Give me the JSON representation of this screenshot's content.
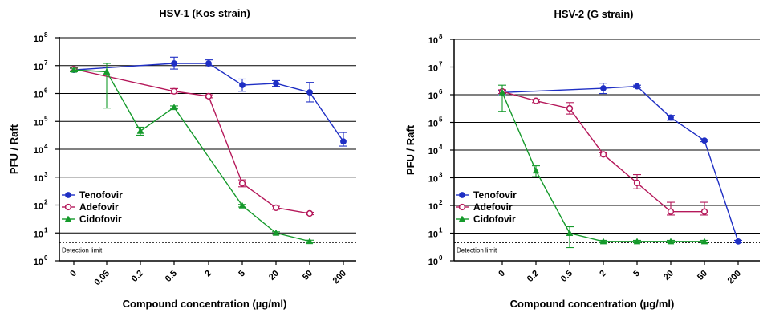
{
  "chart_data": [
    {
      "type": "line",
      "title": "HSV-1 (Kos strain)",
      "xlabel": "Compound concentration (µg/ml)",
      "ylabel": "PFU / Raft",
      "y_scale": "log",
      "ylim": [
        1,
        100000000
      ],
      "y_ticks": [
        {
          "base": "10",
          "exp": "0"
        },
        {
          "base": "10",
          "exp": "1"
        },
        {
          "base": "10",
          "exp": "2"
        },
        {
          "base": "10",
          "exp": "3"
        },
        {
          "base": "10",
          "exp": "4"
        },
        {
          "base": "10",
          "exp": "5"
        },
        {
          "base": "10",
          "exp": "6"
        },
        {
          "base": "10",
          "exp": "7"
        },
        {
          "base": "10",
          "exp": "8"
        }
      ],
      "categories": [
        "0",
        "0.05",
        "0.2",
        "0.5",
        "2",
        "5",
        "20",
        "50",
        "200"
      ],
      "grid": "horizontal",
      "legend_position": "bottom-left",
      "detection_limit": {
        "value": 4.5,
        "label": "Detection limit"
      },
      "series": [
        {
          "name": "Tenofovir",
          "color": "#1f2fc4",
          "marker": "circle-filled",
          "x": [
            "0",
            "0.5",
            "2",
            "5",
            "20",
            "50",
            "200"
          ],
          "values": [
            7000000,
            12000000,
            12000000,
            2000000,
            2300000,
            1100000,
            19000
          ],
          "err_low": [
            6000000,
            7500000,
            9000000,
            1200000,
            1800000,
            500000,
            13000
          ],
          "err_high": [
            8000000,
            20000000,
            16000000,
            3300000,
            2900000,
            2500000,
            40000
          ]
        },
        {
          "name": "Adefovir",
          "color": "#b5185a",
          "marker": "circle-open",
          "x": [
            "0",
            "0.5",
            "2",
            "5",
            "20",
            "50"
          ],
          "values": [
            7500000,
            1200000,
            800000,
            600,
            80,
            50
          ],
          "err_low": [
            6500000,
            1000000,
            700000,
            450,
            70,
            45
          ],
          "err_high": [
            8500000,
            1500000,
            900000,
            800,
            90,
            55
          ]
        },
        {
          "name": "Cidofovir",
          "color": "#159a2b",
          "marker": "triangle-filled",
          "x": [
            "0",
            "0.05",
            "0.2",
            "0.5",
            "5",
            "20",
            "50"
          ],
          "values": [
            7000000,
            6000000,
            45000,
            320000,
            95,
            10,
            5
          ],
          "err_low": [
            6000000,
            300000,
            32000,
            280000,
            85,
            9,
            4.5
          ],
          "err_high": [
            8000000,
            12000000,
            62000,
            360000,
            105,
            11,
            5.5
          ]
        }
      ]
    },
    {
      "type": "line",
      "title": "HSV-2 (G strain)",
      "xlabel": "Compound concentration (µg/ml)",
      "ylabel": "PFU / Raft",
      "y_scale": "log",
      "ylim": [
        1,
        100000000
      ],
      "y_ticks": [
        {
          "base": "10",
          "exp": "0"
        },
        {
          "base": "10",
          "exp": "1"
        },
        {
          "base": "10",
          "exp": "2"
        },
        {
          "base": "10",
          "exp": "3"
        },
        {
          "base": "10",
          "exp": "4"
        },
        {
          "base": "10",
          "exp": "5"
        },
        {
          "base": "10",
          "exp": "6"
        },
        {
          "base": "10",
          "exp": "7"
        },
        {
          "base": "10",
          "exp": "8"
        }
      ],
      "categories": [
        "0",
        "0.2",
        "0.5",
        "2",
        "5",
        "20",
        "50",
        "200"
      ],
      "grid": "horizontal",
      "legend_position": "bottom-left",
      "detection_limit": {
        "value": 4.5,
        "label": "Detection limit"
      },
      "series": [
        {
          "name": "Tenofovir",
          "color": "#1f2fc4",
          "marker": "circle-filled",
          "x": [
            "0",
            "2",
            "5",
            "20",
            "50",
            "200"
          ],
          "values": [
            1200000,
            1700000,
            2000000,
            150000,
            22000,
            5
          ],
          "err_low": [
            1000000,
            1100000,
            1800000,
            120000,
            20000,
            4.5
          ],
          "err_high": [
            1400000,
            2600000,
            2200000,
            180000,
            24000,
            5.5
          ]
        },
        {
          "name": "Adefovir",
          "color": "#b5185a",
          "marker": "circle-open",
          "x": [
            "0",
            "0.2",
            "0.5",
            "2",
            "5",
            "20",
            "50"
          ],
          "values": [
            1300000,
            600000,
            320000,
            7000,
            650,
            60,
            60
          ],
          "err_low": [
            1100000,
            520000,
            200000,
            6000,
            400,
            45,
            45
          ],
          "err_high": [
            1500000,
            680000,
            520000,
            8000,
            1300,
            130,
            130
          ]
        },
        {
          "name": "Cidofovir",
          "color": "#159a2b",
          "marker": "triangle-filled",
          "x": [
            "0",
            "0.2",
            "0.5",
            "2",
            "5",
            "20",
            "50"
          ],
          "values": [
            1200000,
            1800,
            10,
            5,
            5,
            5,
            5
          ],
          "err_low": [
            250000,
            1100,
            3,
            4.5,
            4.5,
            4.5,
            4.5
          ],
          "err_high": [
            2200000,
            2700,
            17,
            5.5,
            5.5,
            5.5,
            5.5
          ]
        }
      ]
    }
  ]
}
